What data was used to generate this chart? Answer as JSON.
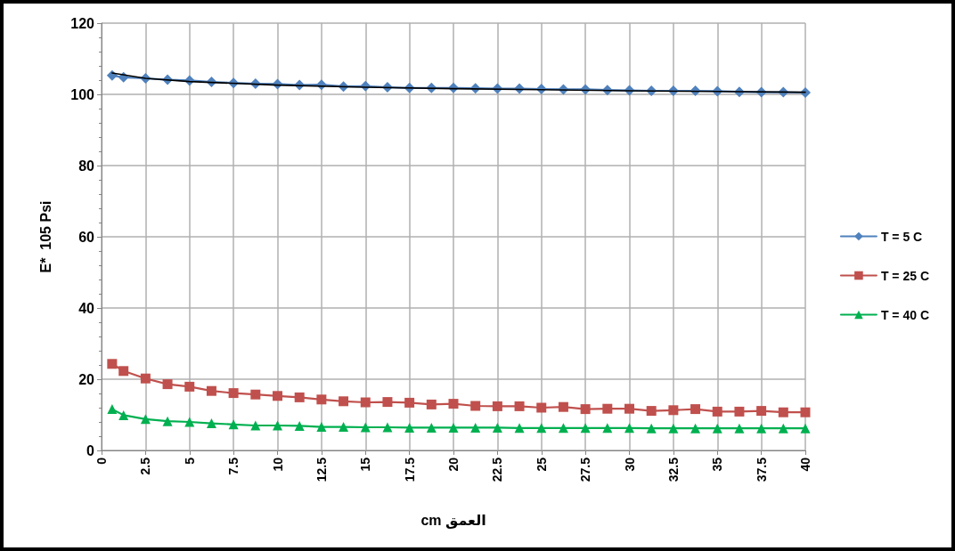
{
  "chart_data": {
    "type": "line",
    "xlabel": "cm العمق",
    "ylabel": "E*  105 Psi",
    "xlim": [
      0,
      40
    ],
    "xticks": [
      0,
      2.5,
      5,
      7.5,
      10,
      12.5,
      15,
      17.5,
      20,
      22.5,
      25,
      27.5,
      30,
      32.5,
      35,
      37.5,
      40
    ],
    "ylim": [
      0,
      120
    ],
    "yticks": [
      0,
      20,
      40,
      60,
      80,
      100,
      120
    ],
    "x": [
      0.6,
      1.25,
      2.5,
      3.75,
      5,
      6.25,
      7.5,
      8.75,
      10,
      11.25,
      12.5,
      13.75,
      15,
      16.25,
      17.5,
      18.75,
      20,
      21.25,
      22.5,
      23.75,
      25,
      26.25,
      27.5,
      28.75,
      30,
      31.25,
      32.5,
      33.75,
      35,
      36.25,
      37.5,
      38.75,
      40
    ],
    "grid": true,
    "legend": "right",
    "series": [
      {
        "name": "T = 5 C",
        "color": "#4f81bd",
        "marker": "diamond",
        "values": [
          105.3,
          104.8,
          104.5,
          104.1,
          103.9,
          103.5,
          103.2,
          103.0,
          102.9,
          102.6,
          102.7,
          102.2,
          102.3,
          102.0,
          101.8,
          101.8,
          101.8,
          101.7,
          101.6,
          101.6,
          101.5,
          101.4,
          101.4,
          101.2,
          101.1,
          101.0,
          101.0,
          101.0,
          100.9,
          100.7,
          100.6,
          100.6,
          100.5
        ]
      },
      {
        "name": "T = 25 C",
        "color": "#c0504d",
        "marker": "square",
        "values": [
          24.3,
          22.3,
          20.2,
          18.6,
          17.9,
          16.7,
          16.1,
          15.7,
          15.3,
          14.9,
          14.3,
          13.8,
          13.5,
          13.6,
          13.4,
          12.9,
          13.1,
          12.5,
          12.4,
          12.4,
          12.0,
          12.2,
          11.6,
          11.7,
          11.7,
          11.1,
          11.3,
          11.6,
          10.9,
          10.9,
          11.1,
          10.7,
          10.7
        ]
      },
      {
        "name": "T = 40 C",
        "color": "#00b050",
        "marker": "triangle",
        "values": [
          11.6,
          9.9,
          8.8,
          8.2,
          8.0,
          7.6,
          7.3,
          7.0,
          7.0,
          6.9,
          6.6,
          6.6,
          6.5,
          6.5,
          6.4,
          6.4,
          6.4,
          6.4,
          6.4,
          6.3,
          6.3,
          6.3,
          6.3,
          6.3,
          6.3,
          6.2,
          6.2,
          6.2,
          6.2,
          6.2,
          6.2,
          6.2,
          6.2
        ]
      },
      {
        "color": "#000000",
        "marker": "none",
        "x": [
          0.6,
          2.5,
          5,
          10,
          15,
          20,
          25,
          30,
          35,
          40
        ],
        "values": [
          106.0,
          104.5,
          103.6,
          102.6,
          102.0,
          101.6,
          101.3,
          101.0,
          100.8,
          100.6
        ]
      }
    ]
  }
}
